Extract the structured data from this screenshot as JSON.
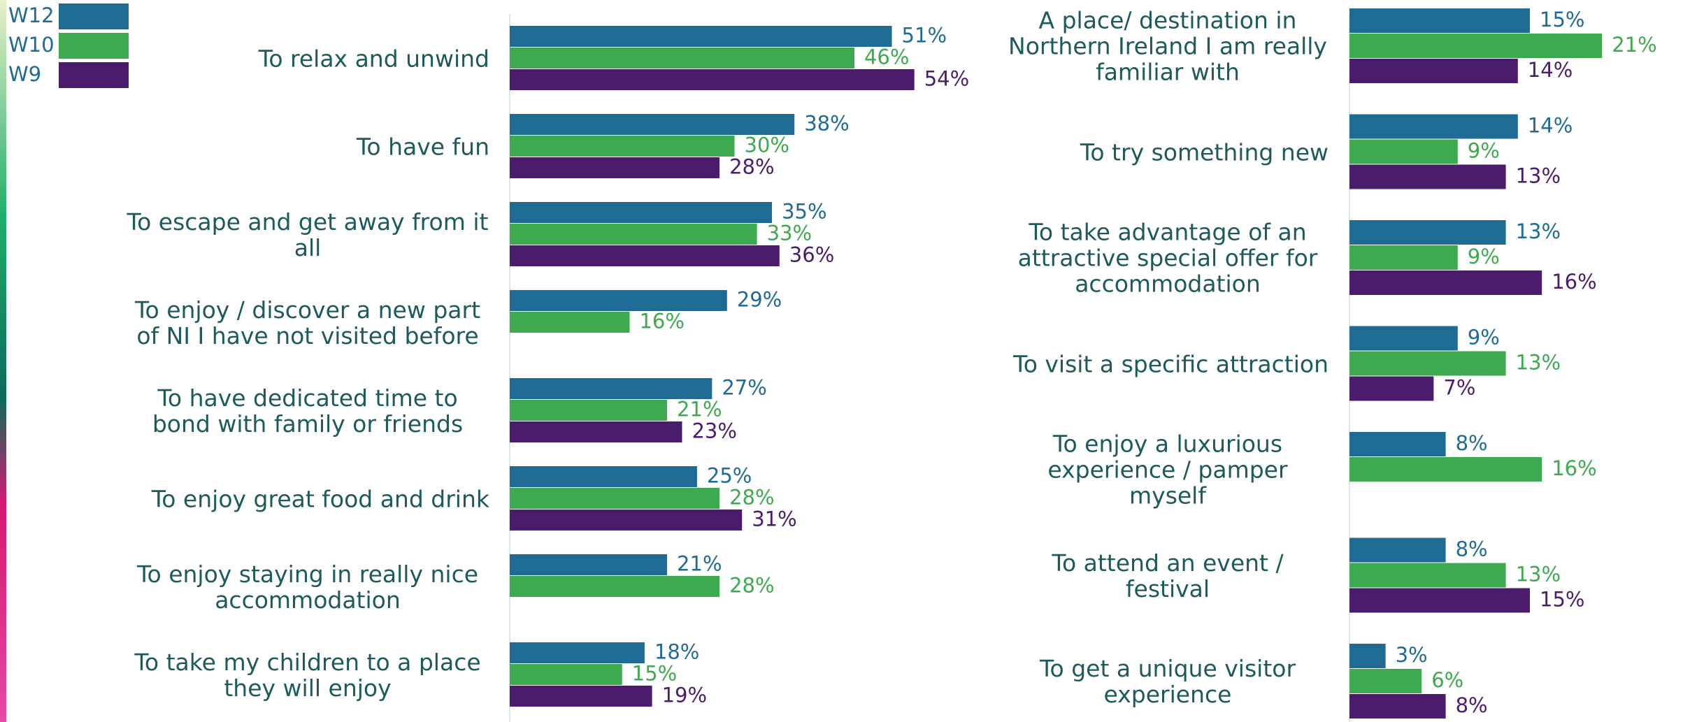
{
  "legend": [
    {
      "name": "W12",
      "color": "#1f6b94"
    },
    {
      "name": "W10",
      "color": "#3daa4f"
    },
    {
      "name": "W9",
      "color": "#4a1c6b"
    }
  ],
  "chart_data": [
    {
      "type": "bar",
      "xlim": [
        0,
        60
      ],
      "categories": [
        "To relax and unwind",
        "To have fun",
        "To escape and get away from it all",
        "To enjoy / discover a new part of NI I have not visited before",
        "To have dedicated time to bond with family or friends",
        "To enjoy great food and drink",
        "To enjoy staying in really nice accommodation",
        "To take my children to a place they will enjoy"
      ],
      "series": [
        {
          "values": [
            51,
            38,
            35,
            29,
            27,
            25,
            21,
            18
          ],
          "value_labels": [
            "51%",
            "38%",
            "35%",
            "29%",
            "27%",
            "25%",
            "21%",
            "18%"
          ]
        },
        {
          "values": [
            46,
            30,
            33,
            16,
            21,
            28,
            28,
            15
          ],
          "value_labels": [
            "46%",
            "30%",
            "33%",
            "16%",
            "21%",
            "28%",
            "28%",
            "15%"
          ]
        },
        {
          "values": [
            54,
            28,
            36,
            null,
            23,
            31,
            null,
            19
          ],
          "value_labels": [
            "54%",
            "28%",
            "36%",
            null,
            "23%",
            "31%",
            null,
            "19%"
          ]
        }
      ]
    },
    {
      "type": "bar",
      "xlim": [
        0,
        30
      ],
      "categories": [
        "A place/ destination in Northern Ireland I am really familiar with",
        "To try something new",
        "To take advantage of an attractive special offer for accommodation",
        "To visit a specific attraction",
        "To enjoy a luxurious experience / pamper myself",
        "To attend an event / festival",
        "To get a unique visitor experience"
      ],
      "series": [
        {
          "values": [
            15,
            14,
            13,
            9,
            8,
            8,
            3
          ],
          "value_labels": [
            "15%",
            "14%",
            "13%",
            "9%",
            "8%",
            "8%",
            "3%"
          ]
        },
        {
          "values": [
            21,
            9,
            9,
            13,
            16,
            13,
            6
          ],
          "value_labels": [
            "21%",
            "9%",
            "9%",
            "13%",
            "16%",
            "13%",
            "6%"
          ]
        },
        {
          "values": [
            14,
            13,
            16,
            7,
            null,
            15,
            8
          ],
          "value_labels": [
            "14%",
            "13%",
            "16%",
            "7%",
            null,
            "15%",
            "8%"
          ]
        }
      ]
    }
  ]
}
